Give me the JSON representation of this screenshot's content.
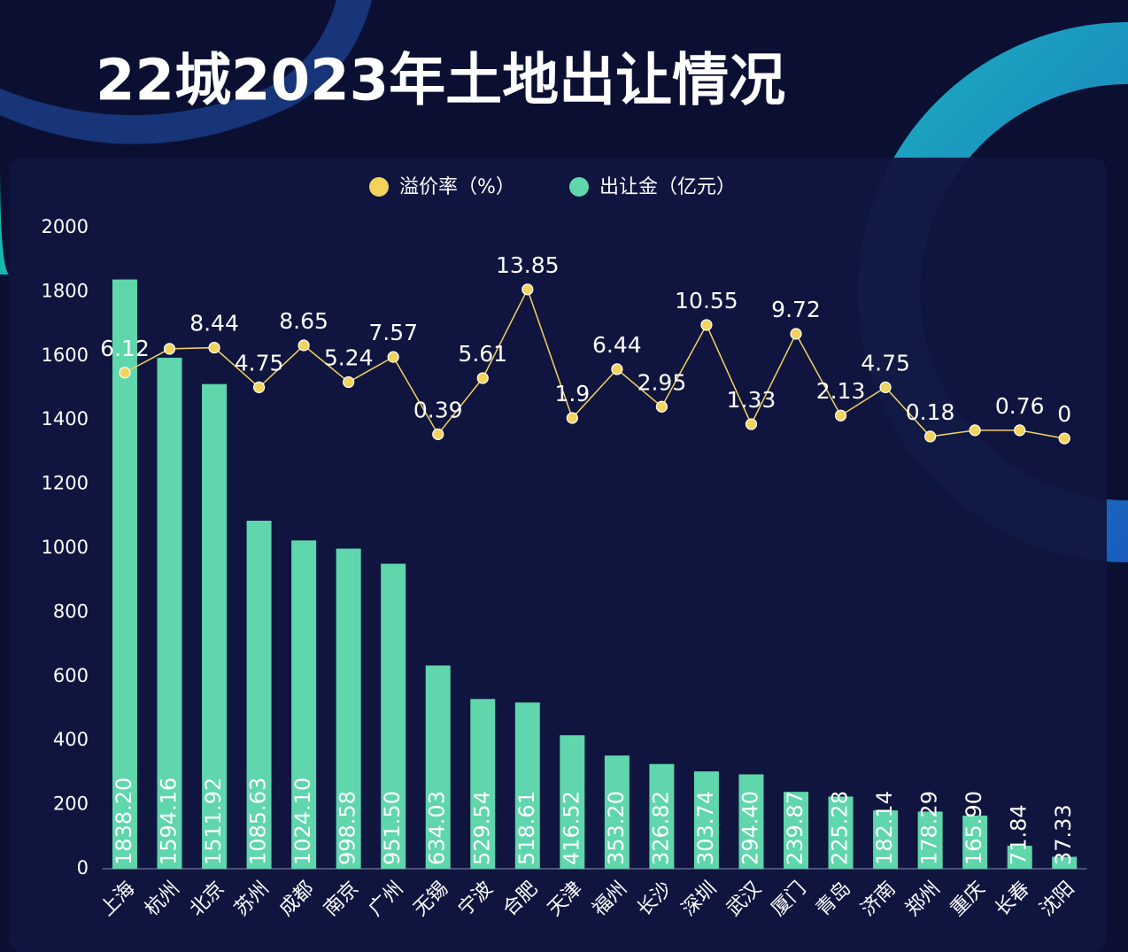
{
  "chart_data": {
    "type": "bar",
    "title": "22城2023年土地出让情况",
    "categories": [
      "上海",
      "杭州",
      "北京",
      "苏州",
      "成都",
      "南京",
      "广州",
      "无锡",
      "宁波",
      "合肥",
      "天津",
      "福州",
      "长沙",
      "深圳",
      "武汉",
      "厦门",
      "青岛",
      "济南",
      "郑州",
      "重庆",
      "长春",
      "沈阳"
    ],
    "series": [
      {
        "name": "溢价率（%）",
        "type": "line",
        "axis": "y2",
        "color": "#f2d35e",
        "values": [
          6.12,
          8.33,
          8.44,
          4.75,
          8.65,
          5.24,
          7.57,
          0.39,
          5.61,
          13.85,
          1.9,
          6.44,
          2.95,
          10.55,
          1.33,
          9.72,
          2.13,
          4.75,
          0.18,
          0.76,
          0.76,
          0
        ],
        "value_labels": [
          "6.12",
          null,
          "8.44",
          "4.75",
          "8.65",
          "5.24",
          "7.57",
          "0.39",
          "5.61",
          "13.85",
          "1.9",
          "6.44",
          "2.95",
          "10.55",
          "1.33",
          "9.72",
          "2.13",
          "4.75",
          "0.18",
          null,
          "0.76",
          "0"
        ]
      },
      {
        "name": "出让金（亿元）",
        "type": "bar",
        "axis": "y",
        "color": "#5fd6ab",
        "values": [
          1838.2,
          1594.16,
          1511.92,
          1085.63,
          1024.1,
          998.58,
          951.5,
          634.03,
          529.54,
          518.61,
          416.52,
          353.2,
          326.82,
          303.74,
          294.4,
          239.87,
          225.28,
          182.14,
          178.29,
          165.9,
          71.84,
          37.33
        ],
        "value_labels": [
          "1838.20",
          "1594.16",
          "1511.92",
          "1085.63",
          "1024.10",
          "998.58",
          "951.50",
          "634.03",
          "529.54",
          "518.61",
          "416.52",
          "353.20",
          "326.82",
          "303.74",
          "294.40",
          "239.87",
          "225.28",
          "182.14",
          "178.29",
          "165.90",
          "71.84",
          "37.33"
        ]
      }
    ],
    "ylim": [
      0,
      2000
    ],
    "yticks": [
      0,
      200,
      400,
      600,
      800,
      1000,
      1200,
      1400,
      1600,
      1800,
      2000
    ],
    "y2lim": [
      -40,
      19.6
    ],
    "legend": "top",
    "grid": false
  }
}
